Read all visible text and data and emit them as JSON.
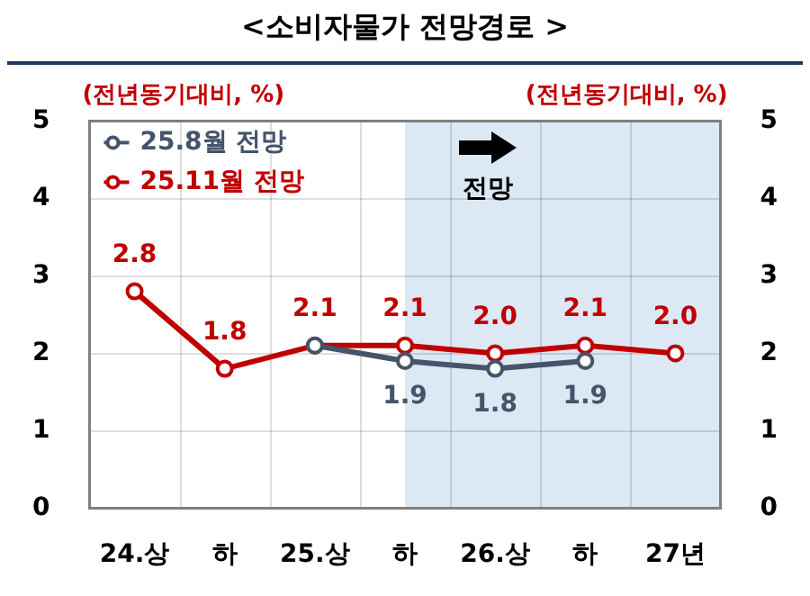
{
  "chart_data": {
    "type": "line",
    "title": "<소비자물가 전망경로 >",
    "ylabel": "(전년동기대비, %)",
    "y2label": "(전년동기대비, %)",
    "categories": [
      "24.상",
      "하",
      "25.상",
      "하",
      "26.상",
      "하",
      "27년"
    ],
    "series": [
      {
        "name": "25.8월 전망",
        "color": "#44546a",
        "values": [
          null,
          null,
          2.1,
          1.9,
          1.8,
          1.9,
          null
        ],
        "value_labels": [
          null,
          null,
          null,
          "1.9",
          "1.8",
          "1.9",
          null
        ]
      },
      {
        "name": "25.11월 전망",
        "color": "#c00000",
        "values": [
          2.8,
          1.8,
          2.1,
          2.1,
          2.0,
          2.1,
          2.0
        ],
        "value_labels": [
          "2.8",
          "1.8",
          "2.1",
          "2.1",
          "2.0",
          "2.1",
          "2.0"
        ]
      }
    ],
    "ylim": [
      0,
      5
    ],
    "yticks": [
      0,
      1,
      2,
      3,
      4,
      5
    ],
    "y2lim": [
      0,
      5
    ],
    "y2ticks": [
      0,
      1,
      2,
      3,
      4,
      5
    ],
    "annotations": [
      "전망"
    ],
    "grid": true,
    "legend": "top left",
    "marker": "circle",
    "line_style": "solid"
  }
}
